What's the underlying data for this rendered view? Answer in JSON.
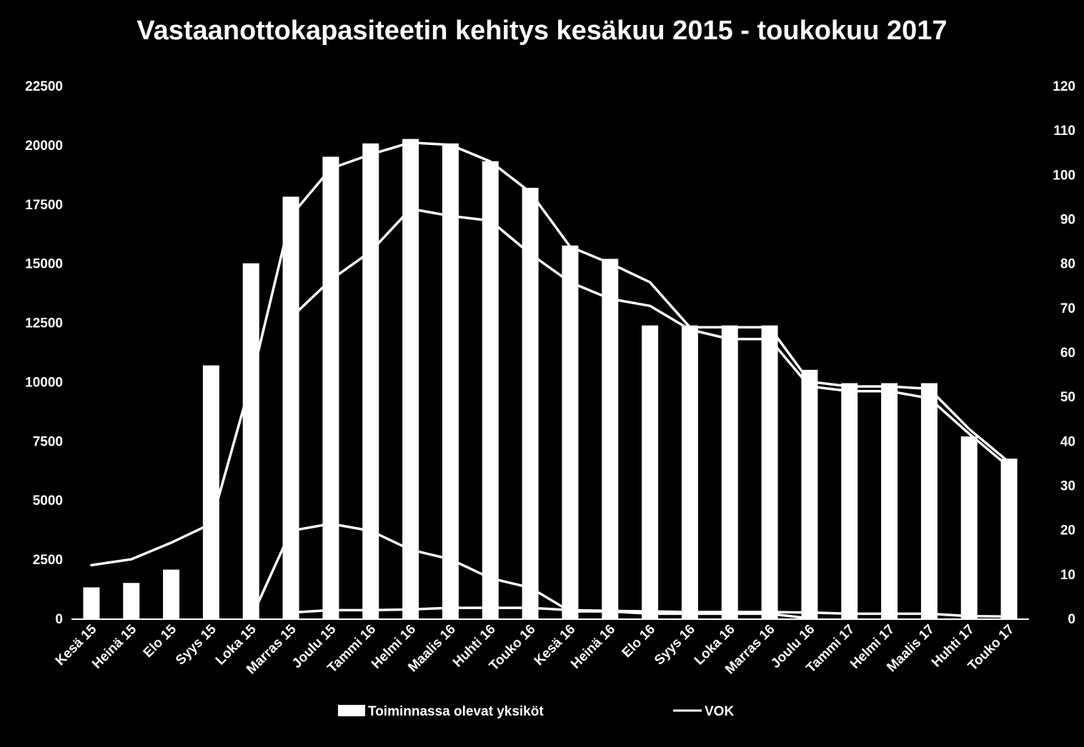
{
  "chart_data": {
    "type": "bar",
    "title": "Vastaanottokapasiteetin kehitys kesäkuu 2015 - toukokuu 2017",
    "xlabel": "",
    "ylabel": "",
    "categories": [
      "Kesä 15",
      "Heinä 15",
      "Elo 15",
      "Syys 15",
      "Loka 15",
      "Marras 15",
      "Joulu 15",
      "Tammi 16",
      "Helmi 16",
      "Maalis 16",
      "Huhti 16",
      "Touko 16",
      "Kesä 16",
      "Heinä 16",
      "Elo 16",
      "Syys 16",
      "Loka 16",
      "Marras 16",
      "Joulu 16",
      "Tammi 17",
      "Helmi 17",
      "Maalis 17",
      "Huhti 17",
      "Touko 17"
    ],
    "ylim": [
      0,
      22500
    ],
    "y_ticks": [
      "0",
      "2500",
      "5000",
      "7500",
      "10000",
      "12500",
      "15000",
      "17500",
      "20000",
      "22500"
    ],
    "y2lim": [
      0,
      120
    ],
    "y2_ticks": [
      "0",
      "10",
      "20",
      "30",
      "40",
      "50",
      "60",
      "70",
      "80",
      "90",
      "100",
      "110",
      "120"
    ],
    "grid": false,
    "legend_position": "bottom",
    "bar_series": {
      "name": "Toiminnassa olevat yksiköt",
      "axis": "right",
      "values": [
        7,
        8,
        11,
        57,
        80,
        95,
        104,
        107,
        108,
        107,
        103,
        97,
        84,
        81,
        66,
        66,
        66,
        66,
        56,
        53,
        53,
        53,
        41,
        36
      ]
    },
    "line_series": [
      {
        "name": "VOK",
        "axis": "left",
        "values": [
          2250,
          2500,
          3200,
          4000,
          10000,
          17000,
          19000,
          19600,
          20100,
          20000,
          19300,
          18000,
          15700,
          15000,
          14200,
          12300,
          12300,
          12300,
          10000,
          9800,
          9800,
          9700,
          8000,
          6600
        ]
      },
      {
        "name": "",
        "axis": "left",
        "values": [
          null,
          null,
          null,
          null,
          null,
          12700,
          14300,
          15500,
          17300,
          17000,
          16800,
          15400,
          14200,
          13500,
          13200,
          12200,
          11800,
          11800,
          9800,
          9600,
          9600,
          9300,
          7800,
          6400
        ]
      },
      {
        "name": "",
        "axis": "left",
        "values": [
          null,
          null,
          null,
          null,
          0,
          3700,
          4000,
          3700,
          2900,
          2500,
          1700,
          1300,
          300,
          300,
          200,
          200,
          200,
          200,
          0,
          null,
          null,
          null,
          null,
          null
        ]
      },
      {
        "name": "",
        "axis": "left",
        "values": [
          null,
          null,
          null,
          null,
          null,
          250,
          350,
          350,
          380,
          450,
          450,
          450,
          350,
          320,
          300,
          270,
          270,
          270,
          250,
          200,
          200,
          200,
          100,
          80
        ]
      }
    ]
  }
}
